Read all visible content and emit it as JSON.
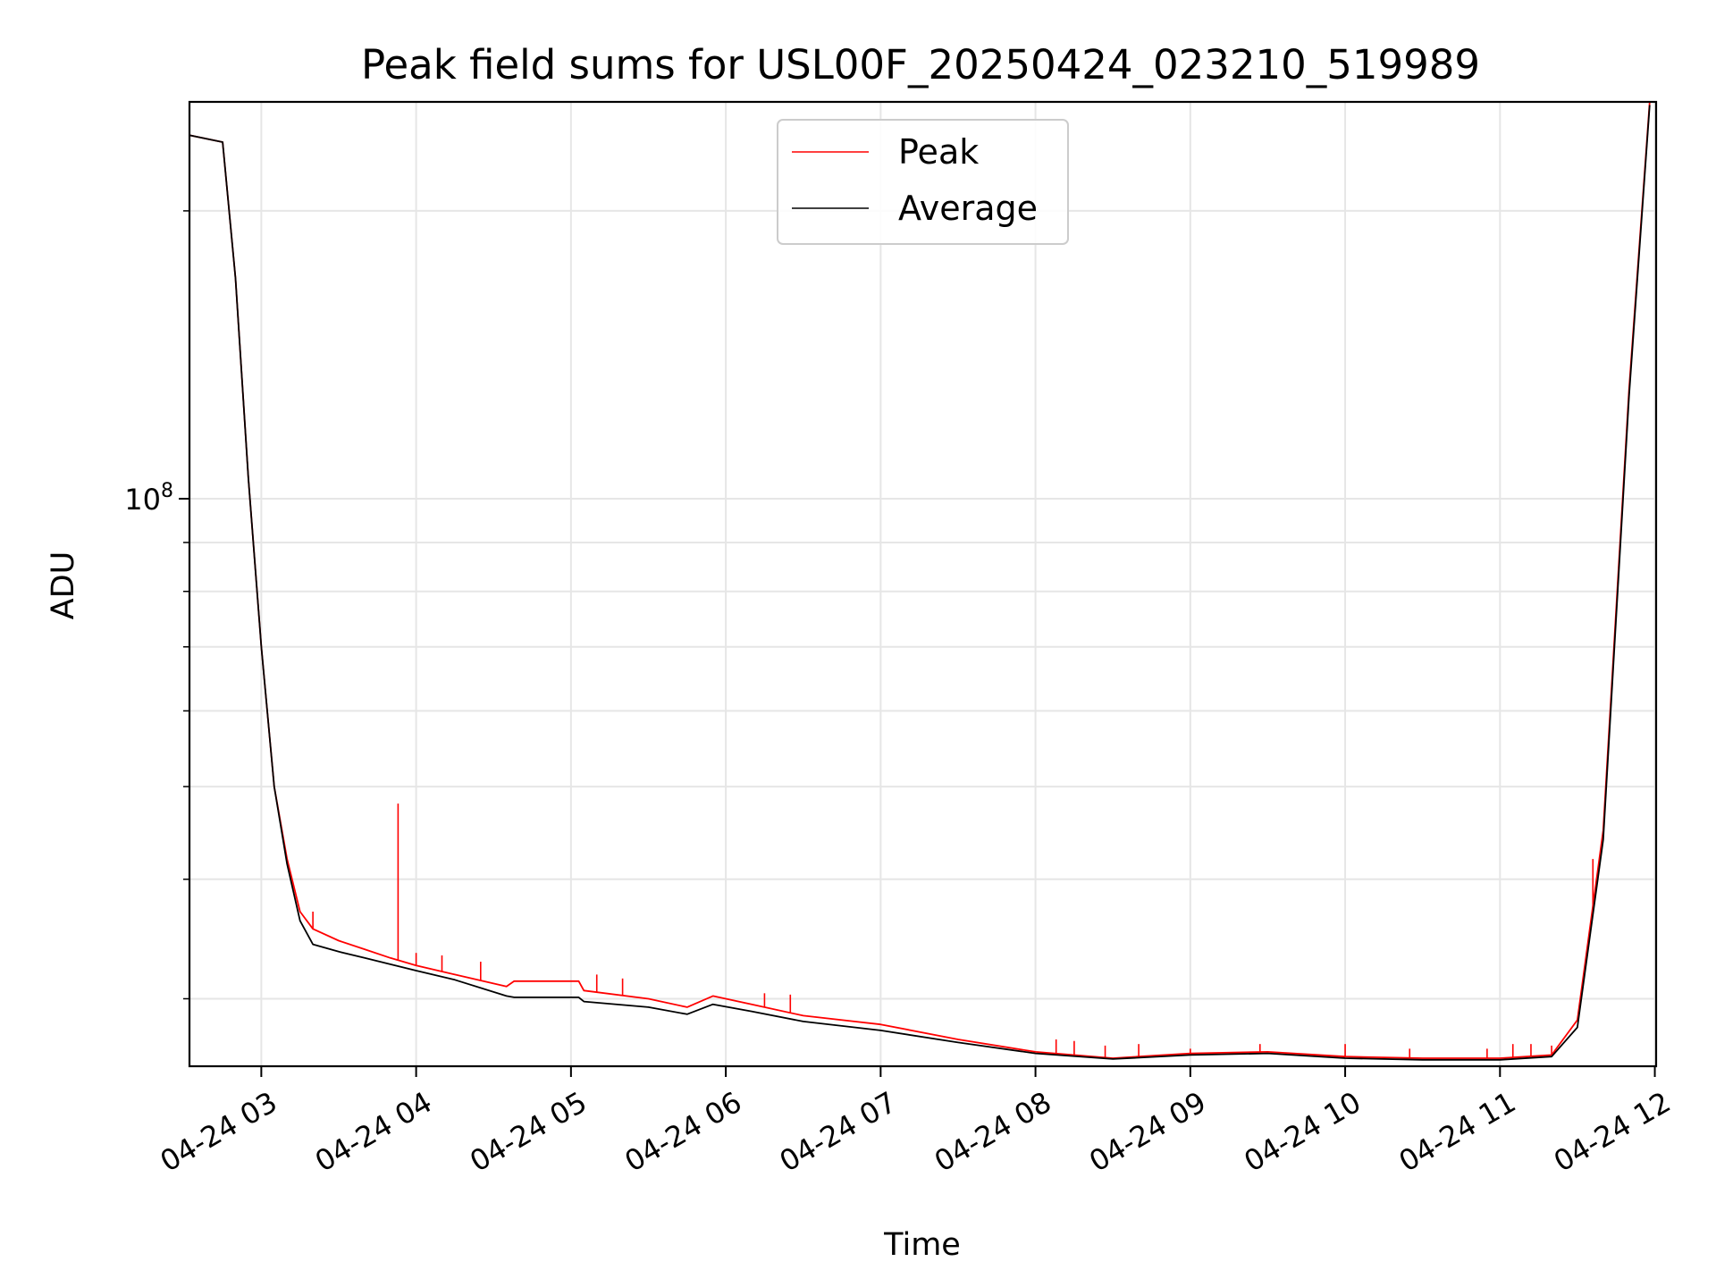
{
  "chart_data": {
    "type": "line",
    "title": "Peak field sums for USL00F_20250424_023210_519989",
    "xlabel": "Time",
    "ylabel": "ADU",
    "y_scale": "log",
    "grid": true,
    "legend_placement": "upper center",
    "x_range": [
      "2025-04-24 02:32:10",
      "2025-04-24 12:00:00"
    ],
    "ylim": [
      25500000,
      260000000
    ],
    "x_ticks": [
      "04-24 03",
      "04-24 04",
      "04-24 05",
      "04-24 06",
      "04-24 07",
      "04-24 08",
      "04-24 09",
      "04-24 10",
      "04-24 11",
      "04-24 12"
    ],
    "y_tick_major": {
      "base": "10",
      "exponent": "8",
      "value": 100000000
    },
    "colors": {
      "peak": "#ff0000",
      "average": "#000000",
      "grid": "#e6e6e6"
    },
    "series": [
      {
        "name": "Peak",
        "color": "#ff0000",
        "points": [
          [
            "04-24 02:32",
            240000000
          ],
          [
            "04-24 02:45",
            236000000
          ],
          [
            "04-24 02:50",
            170000000
          ],
          [
            "04-24 02:55",
            105000000
          ],
          [
            "04-24 03:00",
            70000000
          ],
          [
            "04-24 03:05",
            50000000
          ],
          [
            "04-24 03:10",
            42000000
          ],
          [
            "04-24 03:15",
            37000000
          ],
          [
            "04-24 03:20",
            35500000
          ],
          [
            "04-24 03:30",
            34500000
          ],
          [
            "04-24 03:40",
            33800000
          ],
          [
            "04-24 03:50",
            33100000
          ],
          [
            "04-24 04:00",
            32500000
          ],
          [
            "04-24 04:15",
            31800000
          ],
          [
            "04-24 04:35",
            30900000
          ],
          [
            "04-24 04:38",
            31300000
          ],
          [
            "04-24 05:03",
            31300000
          ],
          [
            "04-24 05:05",
            30600000
          ],
          [
            "04-24 05:30",
            30000000
          ],
          [
            "04-24 05:45",
            29400000
          ],
          [
            "04-24 05:55",
            30200000
          ],
          [
            "04-24 06:10",
            29600000
          ],
          [
            "04-24 06:30",
            28800000
          ],
          [
            "04-24 07:00",
            28200000
          ],
          [
            "04-24 07:30",
            27200000
          ],
          [
            "04-24 08:00",
            26400000
          ],
          [
            "04-24 08:30",
            26000000
          ],
          [
            "04-24 09:00",
            26300000
          ],
          [
            "04-24 09:30",
            26400000
          ],
          [
            "04-24 10:00",
            26100000
          ],
          [
            "04-24 10:30",
            26000000
          ],
          [
            "04-24 11:00",
            26000000
          ],
          [
            "04-24 11:20",
            26200000
          ],
          [
            "04-24 11:30",
            28500000
          ],
          [
            "04-24 11:40",
            45000000
          ],
          [
            "04-24 11:50",
            130000000
          ],
          [
            "04-24 11:58",
            260000000
          ]
        ]
      },
      {
        "name": "Average",
        "color": "#000000",
        "points": [
          [
            "04-24 02:32",
            240000000
          ],
          [
            "04-24 02:45",
            236000000
          ],
          [
            "04-24 02:50",
            170000000
          ],
          [
            "04-24 02:55",
            105000000
          ],
          [
            "04-24 03:00",
            70000000
          ],
          [
            "04-24 03:05",
            50000000
          ],
          [
            "04-24 03:10",
            41500000
          ],
          [
            "04-24 03:15",
            36200000
          ],
          [
            "04-24 03:20",
            34200000
          ],
          [
            "04-24 03:30",
            33600000
          ],
          [
            "04-24 03:40",
            33100000
          ],
          [
            "04-24 03:50",
            32600000
          ],
          [
            "04-24 04:00",
            32100000
          ],
          [
            "04-24 04:15",
            31400000
          ],
          [
            "04-24 04:35",
            30200000
          ],
          [
            "04-24 04:38",
            30100000
          ],
          [
            "04-24 05:03",
            30100000
          ],
          [
            "04-24 05:05",
            29800000
          ],
          [
            "04-24 05:30",
            29400000
          ],
          [
            "04-24 05:45",
            28900000
          ],
          [
            "04-24 05:55",
            29600000
          ],
          [
            "04-24 06:10",
            29100000
          ],
          [
            "04-24 06:30",
            28400000
          ],
          [
            "04-24 07:00",
            27800000
          ],
          [
            "04-24 07:30",
            27000000
          ],
          [
            "04-24 08:00",
            26300000
          ],
          [
            "04-24 08:30",
            25950000
          ],
          [
            "04-24 09:00",
            26200000
          ],
          [
            "04-24 09:30",
            26300000
          ],
          [
            "04-24 10:00",
            26000000
          ],
          [
            "04-24 10:30",
            25900000
          ],
          [
            "04-24 11:00",
            25900000
          ],
          [
            "04-24 11:20",
            26100000
          ],
          [
            "04-24 11:30",
            28000000
          ],
          [
            "04-24 11:40",
            44000000
          ],
          [
            "04-24 11:50",
            128000000
          ],
          [
            "04-24 11:58",
            258000000
          ]
        ]
      }
    ],
    "peak_spikes": [
      [
        "04-24 03:53",
        48000000
      ],
      [
        "04-24 03:20",
        37000000
      ],
      [
        "04-24 04:00",
        33500000
      ],
      [
        "04-24 04:10",
        33300000
      ],
      [
        "04-24 04:25",
        32800000
      ],
      [
        "04-24 05:10",
        31800000
      ],
      [
        "04-24 05:20",
        31500000
      ],
      [
        "04-24 06:15",
        30400000
      ],
      [
        "04-24 06:25",
        30300000
      ],
      [
        "04-24 08:08",
        27200000
      ],
      [
        "04-24 08:15",
        27100000
      ],
      [
        "04-24 08:27",
        26800000
      ],
      [
        "04-24 08:40",
        26900000
      ],
      [
        "04-24 09:00",
        26600000
      ],
      [
        "04-24 09:27",
        26900000
      ],
      [
        "04-24 10:00",
        26900000
      ],
      [
        "04-24 10:25",
        26600000
      ],
      [
        "04-24 10:55",
        26600000
      ],
      [
        "04-24 11:05",
        26900000
      ],
      [
        "04-24 11:12",
        26900000
      ],
      [
        "04-24 11:20",
        26800000
      ],
      [
        "04-24 11:36",
        42000000
      ]
    ]
  }
}
